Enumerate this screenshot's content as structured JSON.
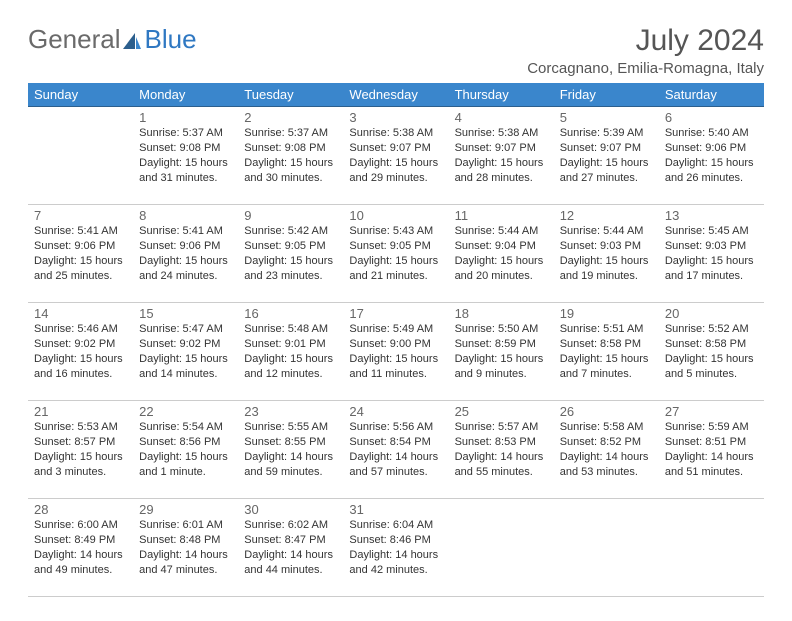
{
  "brand": {
    "part1": "General",
    "part2": "Blue",
    "accent": "#2f78c2",
    "sail": "#2c5f8d"
  },
  "title": "July 2024",
  "location": "Corcagnano, Emilia-Romagna, Italy",
  "header_bg": "#3a86cc",
  "row_border": "#2c5f8d",
  "days": [
    "Sunday",
    "Monday",
    "Tuesday",
    "Wednesday",
    "Thursday",
    "Friday",
    "Saturday"
  ],
  "weeks": [
    [
      null,
      {
        "n": "1",
        "sr": "5:37 AM",
        "ss": "9:08 PM",
        "dl": "15 hours and 31 minutes."
      },
      {
        "n": "2",
        "sr": "5:37 AM",
        "ss": "9:08 PM",
        "dl": "15 hours and 30 minutes."
      },
      {
        "n": "3",
        "sr": "5:38 AM",
        "ss": "9:07 PM",
        "dl": "15 hours and 29 minutes."
      },
      {
        "n": "4",
        "sr": "5:38 AM",
        "ss": "9:07 PM",
        "dl": "15 hours and 28 minutes."
      },
      {
        "n": "5",
        "sr": "5:39 AM",
        "ss": "9:07 PM",
        "dl": "15 hours and 27 minutes."
      },
      {
        "n": "6",
        "sr": "5:40 AM",
        "ss": "9:06 PM",
        "dl": "15 hours and 26 minutes."
      }
    ],
    [
      {
        "n": "7",
        "sr": "5:41 AM",
        "ss": "9:06 PM",
        "dl": "15 hours and 25 minutes."
      },
      {
        "n": "8",
        "sr": "5:41 AM",
        "ss": "9:06 PM",
        "dl": "15 hours and 24 minutes."
      },
      {
        "n": "9",
        "sr": "5:42 AM",
        "ss": "9:05 PM",
        "dl": "15 hours and 23 minutes."
      },
      {
        "n": "10",
        "sr": "5:43 AM",
        "ss": "9:05 PM",
        "dl": "15 hours and 21 minutes."
      },
      {
        "n": "11",
        "sr": "5:44 AM",
        "ss": "9:04 PM",
        "dl": "15 hours and 20 minutes."
      },
      {
        "n": "12",
        "sr": "5:44 AM",
        "ss": "9:03 PM",
        "dl": "15 hours and 19 minutes."
      },
      {
        "n": "13",
        "sr": "5:45 AM",
        "ss": "9:03 PM",
        "dl": "15 hours and 17 minutes."
      }
    ],
    [
      {
        "n": "14",
        "sr": "5:46 AM",
        "ss": "9:02 PM",
        "dl": "15 hours and 16 minutes."
      },
      {
        "n": "15",
        "sr": "5:47 AM",
        "ss": "9:02 PM",
        "dl": "15 hours and 14 minutes."
      },
      {
        "n": "16",
        "sr": "5:48 AM",
        "ss": "9:01 PM",
        "dl": "15 hours and 12 minutes."
      },
      {
        "n": "17",
        "sr": "5:49 AM",
        "ss": "9:00 PM",
        "dl": "15 hours and 11 minutes."
      },
      {
        "n": "18",
        "sr": "5:50 AM",
        "ss": "8:59 PM",
        "dl": "15 hours and 9 minutes."
      },
      {
        "n": "19",
        "sr": "5:51 AM",
        "ss": "8:58 PM",
        "dl": "15 hours and 7 minutes."
      },
      {
        "n": "20",
        "sr": "5:52 AM",
        "ss": "8:58 PM",
        "dl": "15 hours and 5 minutes."
      }
    ],
    [
      {
        "n": "21",
        "sr": "5:53 AM",
        "ss": "8:57 PM",
        "dl": "15 hours and 3 minutes."
      },
      {
        "n": "22",
        "sr": "5:54 AM",
        "ss": "8:56 PM",
        "dl": "15 hours and 1 minute."
      },
      {
        "n": "23",
        "sr": "5:55 AM",
        "ss": "8:55 PM",
        "dl": "14 hours and 59 minutes."
      },
      {
        "n": "24",
        "sr": "5:56 AM",
        "ss": "8:54 PM",
        "dl": "14 hours and 57 minutes."
      },
      {
        "n": "25",
        "sr": "5:57 AM",
        "ss": "8:53 PM",
        "dl": "14 hours and 55 minutes."
      },
      {
        "n": "26",
        "sr": "5:58 AM",
        "ss": "8:52 PM",
        "dl": "14 hours and 53 minutes."
      },
      {
        "n": "27",
        "sr": "5:59 AM",
        "ss": "8:51 PM",
        "dl": "14 hours and 51 minutes."
      }
    ],
    [
      {
        "n": "28",
        "sr": "6:00 AM",
        "ss": "8:49 PM",
        "dl": "14 hours and 49 minutes."
      },
      {
        "n": "29",
        "sr": "6:01 AM",
        "ss": "8:48 PM",
        "dl": "14 hours and 47 minutes."
      },
      {
        "n": "30",
        "sr": "6:02 AM",
        "ss": "8:47 PM",
        "dl": "14 hours and 44 minutes."
      },
      {
        "n": "31",
        "sr": "6:04 AM",
        "ss": "8:46 PM",
        "dl": "14 hours and 42 minutes."
      },
      null,
      null,
      null
    ]
  ],
  "labels": {
    "sunrise": "Sunrise:",
    "sunset": "Sunset:",
    "daylight": "Daylight:"
  }
}
